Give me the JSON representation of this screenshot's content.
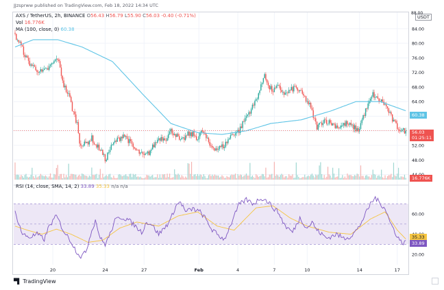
{
  "header": {
    "published": "JJzsprww published on TradingView.com, Feb 18, 2022 14:34 UTC"
  },
  "legend": {
    "symbol": "AXS / TetherUS, 2h, BINANCE",
    "o_label": "O",
    "o_value": "56.43",
    "h_label": "H",
    "h_value": "56.79",
    "l_label": "L",
    "l_value": "55.90",
    "c_label": "C",
    "c_value": "56.03",
    "change": "-0.40 (-0.71%)",
    "vol_label": "Vol",
    "vol_value": "16.776K",
    "ma_label": "MA (100, close, 0)",
    "ma_value": "60.38",
    "rsi_label": "RSI (14, close, SMA, 14, 2)",
    "rsi_value": "33.89",
    "rsi_sma_value": "35.33",
    "rsi_extra": "n/a n/a"
  },
  "price_tags": {
    "ma": "60.38",
    "last_price": "56.03",
    "countdown": "01:25:11",
    "volume": "16.776K",
    "rsi_sma": "35.33",
    "rsi": "33.89",
    "currency": "USDT",
    "top_cut": "88.00"
  },
  "footer": {
    "brand": "TradingView"
  },
  "colors": {
    "up": "#26a69a",
    "down": "#ef5350",
    "ma": "#5ec4e6",
    "rsi": "#7e57c2",
    "rsi_sma": "#f5c542",
    "rsi_band": "#ede7f6"
  },
  "chart_data": [
    {
      "type": "candlestick",
      "title": "AXS / TetherUS, 2h, BINANCE",
      "y_ticks": [
        44,
        48,
        52,
        56,
        60,
        64,
        68,
        72,
        76,
        80,
        84
      ],
      "y_tick_labels": [
        "44.00",
        "48.00",
        "52.00",
        "56.00",
        "60.00",
        "64.00",
        "68.00",
        "72.00",
        "76.00",
        "80.00",
        "84.00"
      ],
      "ylim": [
        42.6,
        88.5
      ],
      "x_tick_labels": [
        "20",
        "24",
        "27",
        "Feb",
        "4",
        "7",
        "10",
        "14",
        "17"
      ],
      "x_tick_index": [
        31,
        74,
        106,
        151,
        183,
        213,
        240,
        283,
        314
      ],
      "close_anchors": [
        [
          0,
          82
        ],
        [
          4,
          80
        ],
        [
          9,
          76
        ],
        [
          12,
          74.5
        ],
        [
          17,
          73
        ],
        [
          22,
          72
        ],
        [
          27,
          73
        ],
        [
          35,
          76
        ],
        [
          40,
          68.5
        ],
        [
          45,
          65
        ],
        [
          47,
          62
        ],
        [
          51,
          58
        ],
        [
          53,
          53
        ],
        [
          56,
          52
        ],
        [
          60,
          53
        ],
        [
          63,
          54
        ],
        [
          66,
          52
        ],
        [
          70,
          51
        ],
        [
          74,
          48
        ],
        [
          78,
          51
        ],
        [
          82,
          53
        ],
        [
          86,
          54
        ],
        [
          89,
          55
        ],
        [
          94,
          53
        ],
        [
          98,
          51
        ],
        [
          102,
          50
        ],
        [
          106,
          49
        ],
        [
          110,
          50
        ],
        [
          114,
          52
        ],
        [
          118,
          54
        ],
        [
          124,
          54
        ],
        [
          128,
          56
        ],
        [
          132,
          55
        ],
        [
          136,
          53
        ],
        [
          142,
          55
        ],
        [
          146,
          55
        ],
        [
          150,
          54
        ],
        [
          154,
          56
        ],
        [
          160,
          52
        ],
        [
          166,
          51
        ],
        [
          172,
          52
        ],
        [
          178,
          55
        ],
        [
          184,
          56
        ],
        [
          190,
          60
        ],
        [
          196,
          63
        ],
        [
          202,
          68
        ],
        [
          205,
          72
        ],
        [
          208,
          68
        ],
        [
          212,
          67
        ],
        [
          216,
          68
        ],
        [
          222,
          66
        ],
        [
          230,
          68
        ],
        [
          236,
          66
        ],
        [
          242,
          63
        ],
        [
          248,
          57
        ],
        [
          254,
          59
        ],
        [
          260,
          58
        ],
        [
          266,
          57
        ],
        [
          272,
          58
        ],
        [
          278,
          57
        ],
        [
          282,
          56
        ],
        [
          286,
          60
        ],
        [
          290,
          63
        ],
        [
          294,
          66
        ],
        [
          298,
          64.5
        ],
        [
          302,
          64
        ],
        [
          306,
          62
        ],
        [
          310,
          59
        ],
        [
          314,
          57
        ],
        [
          318,
          56
        ],
        [
          321,
          56.03
        ]
      ],
      "volume_label": "16.776K",
      "ma": {
        "name": "MA (100, close, 0)",
        "last": 60.38,
        "anchors": [
          [
            0,
            79
          ],
          [
            15,
            81
          ],
          [
            35,
            81
          ],
          [
            55,
            79
          ],
          [
            80,
            75
          ],
          [
            105,
            66
          ],
          [
            128,
            58
          ],
          [
            150,
            55.5
          ],
          [
            170,
            55
          ],
          [
            190,
            56
          ],
          [
            210,
            58
          ],
          [
            235,
            59
          ],
          [
            260,
            61.5
          ],
          [
            280,
            64
          ],
          [
            300,
            64
          ],
          [
            321,
            61.5
          ]
        ]
      }
    },
    {
      "type": "line",
      "title": "RSI (14, close, SMA, 14, 2)",
      "y_ticks": [
        20,
        40,
        60
      ],
      "y_tick_labels": [
        "20.00",
        "40.00",
        "60.00"
      ],
      "ylim": [
        10,
        83
      ],
      "band": [
        30,
        70
      ],
      "mid": 50,
      "series": [
        {
          "name": "RSI",
          "anchors": [
            [
              0,
              62
            ],
            [
              6,
              40
            ],
            [
              12,
              37
            ],
            [
              18,
              40
            ],
            [
              24,
              35
            ],
            [
              28,
              48
            ],
            [
              34,
              58
            ],
            [
              40,
              43
            ],
            [
              46,
              33
            ],
            [
              50,
              24
            ],
            [
              54,
              18
            ],
            [
              58,
              22
            ],
            [
              62,
              40
            ],
            [
              66,
              54
            ],
            [
              70,
              36
            ],
            [
              74,
              30
            ],
            [
              78,
              40
            ],
            [
              82,
              53
            ],
            [
              86,
              57
            ],
            [
              92,
              55
            ],
            [
              98,
              49
            ],
            [
              104,
              42
            ],
            [
              108,
              52
            ],
            [
              112,
              50
            ],
            [
              118,
              40
            ],
            [
              124,
              48
            ],
            [
              128,
              55
            ],
            [
              132,
              68
            ],
            [
              136,
              72
            ],
            [
              140,
              62
            ],
            [
              146,
              65
            ],
            [
              152,
              62
            ],
            [
              156,
              56
            ],
            [
              162,
              44
            ],
            [
              168,
              38
            ],
            [
              172,
              35
            ],
            [
              178,
              52
            ],
            [
              184,
              69
            ],
            [
              190,
              74
            ],
            [
              196,
              70
            ],
            [
              202,
              76
            ],
            [
              208,
              72
            ],
            [
              212,
              66
            ],
            [
              216,
              62
            ],
            [
              222,
              48
            ],
            [
              228,
              42
            ],
            [
              234,
              56
            ],
            [
              240,
              46
            ],
            [
              244,
              52
            ],
            [
              248,
              44
            ],
            [
              256,
              36
            ],
            [
              264,
              40
            ],
            [
              270,
              36
            ],
            [
              276,
              38
            ],
            [
              282,
              46
            ],
            [
              288,
              60
            ],
            [
              292,
              70
            ],
            [
              296,
              76
            ],
            [
              300,
              70
            ],
            [
              304,
              66
            ],
            [
              308,
              52
            ],
            [
              314,
              38
            ],
            [
              318,
              31
            ],
            [
              321,
              33.89
            ]
          ]
        },
        {
          "name": "RSI-based MA",
          "anchors": [
            [
              0,
              48
            ],
            [
              10,
              44
            ],
            [
              22,
              40
            ],
            [
              34,
              45
            ],
            [
              46,
              40
            ],
            [
              60,
              32
            ],
            [
              72,
              34
            ],
            [
              86,
              46
            ],
            [
              100,
              52
            ],
            [
              118,
              48
            ],
            [
              134,
              58
            ],
            [
              150,
              62
            ],
            [
              166,
              48
            ],
            [
              180,
              44
            ],
            [
              198,
              66
            ],
            [
              212,
              68
            ],
            [
              226,
              56
            ],
            [
              240,
              48
            ],
            [
              258,
              42
            ],
            [
              276,
              40
            ],
            [
              292,
              55
            ],
            [
              304,
              62
            ],
            [
              314,
              44
            ],
            [
              321,
              35.33
            ]
          ]
        }
      ]
    }
  ]
}
